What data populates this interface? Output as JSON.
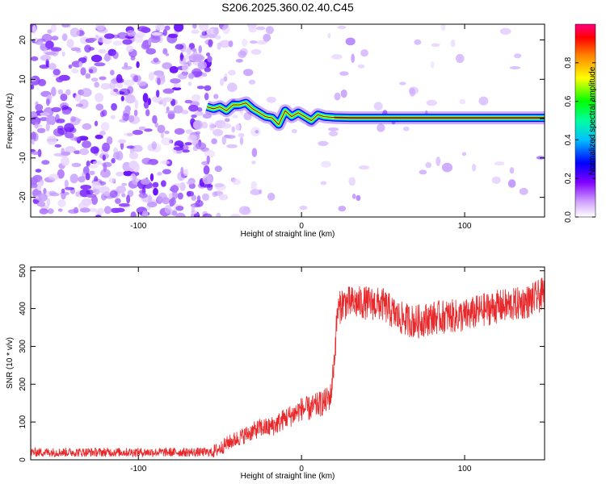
{
  "title": "S206.2025.360.02.40.C45",
  "colors": {
    "line": "#e8282a",
    "spectrum": [
      "#ffffff",
      "#ff00ff",
      "#0000ff",
      "#00ffff",
      "#00ff00",
      "#ffff00",
      "#ff8000",
      "#ff0000",
      "#ff0080"
    ],
    "ridge": "#000000"
  },
  "chart_data": [
    {
      "type": "heatmap",
      "name": "spectrogram",
      "xlabel": "Height of straight line (km)",
      "ylabel": "Frequency (Hz)",
      "xlim": [
        -166,
        149
      ],
      "ylim": [
        -25,
        24
      ],
      "xticks": [
        -100,
        0,
        100
      ],
      "yticks": [
        -20,
        -10,
        0,
        10,
        20
      ],
      "xtick_labels": [
        "-100",
        "0",
        "100"
      ],
      "ytick_labels": [
        "-20",
        "-10",
        "0",
        "10",
        "20"
      ],
      "ridge": {
        "x": [
          -58,
          -54,
          -50,
          -46,
          -42,
          -38,
          -34,
          -30,
          -26,
          -22,
          -18,
          -14,
          -10,
          -6,
          -2,
          2,
          6,
          10,
          14,
          20,
          30,
          40,
          60,
          80,
          100,
          120,
          149
        ],
        "y": [
          3.0,
          2.5,
          3.0,
          2.0,
          3.5,
          3.5,
          4.0,
          2.5,
          1.5,
          0.5,
          0.2,
          -1.5,
          2.0,
          0.5,
          1.5,
          0.5,
          -0.5,
          1.0,
          0.5,
          0.3,
          0.2,
          0.2,
          0.2,
          0.2,
          0.2,
          0.2,
          0.2
        ]
      },
      "colorbar": {
        "label": "Normalized spectral amplitude",
        "range": [
          0,
          1
        ],
        "ticks": [
          0.0,
          0.2,
          0.4,
          0.6,
          0.8
        ],
        "tick_labels": [
          "0.0",
          "0.2",
          "0.4",
          "0.6",
          "0.8"
        ]
      }
    },
    {
      "type": "line",
      "name": "snr",
      "xlabel": "Height of straight line (km)",
      "ylabel": "SNR (10 * v/v)",
      "xlim": [
        -166,
        149
      ],
      "ylim": [
        0,
        510
      ],
      "xticks": [
        -100,
        0,
        100
      ],
      "yticks": [
        0,
        100,
        200,
        300,
        400,
        500
      ],
      "xtick_labels": [
        "-100",
        "0",
        "100"
      ],
      "ytick_labels": [
        "0",
        "100",
        "200",
        "300",
        "400",
        "500"
      ],
      "baseline": {
        "x": [
          -166,
          -55,
          -50,
          -45,
          -40,
          -35,
          -30,
          -25,
          -20,
          -15,
          -10,
          -5,
          0,
          5,
          10,
          15,
          18,
          20,
          22,
          25,
          30,
          40,
          50,
          60,
          70,
          80,
          90,
          100,
          110,
          120,
          130,
          140,
          149
        ],
        "y": [
          20,
          20,
          30,
          45,
          55,
          65,
          75,
          85,
          85,
          95,
          110,
          120,
          135,
          135,
          145,
          155,
          170,
          260,
          390,
          415,
          415,
          415,
          410,
          375,
          365,
          375,
          380,
          380,
          395,
          405,
          410,
          420,
          440
        ]
      }
    }
  ]
}
